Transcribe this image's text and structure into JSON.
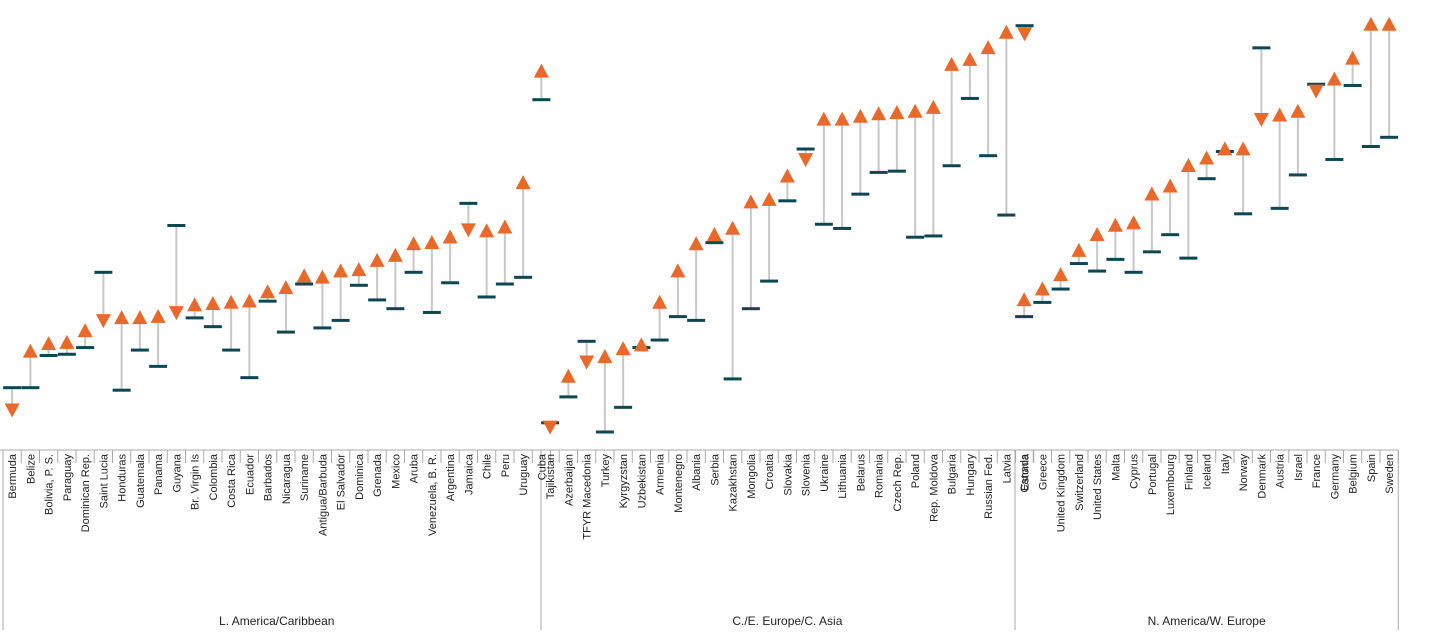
{
  "colors": {
    "start_marker": "#0d4756",
    "end_marker": "#e8692a",
    "connector": "#c8c8c8",
    "axis": "#aaaaaa"
  },
  "chart_data": {
    "type": "dumbbell",
    "title": "",
    "xlabel": "",
    "ylabel": "",
    "y_axis_shown": false,
    "grid": false,
    "legend": "none",
    "ylim": [
      0,
      100
    ],
    "marker_rule": "orange triangle points up when the value rose from the dark dash, down when it fell",
    "groups": [
      {
        "label": "L. America/Caribbean",
        "items": [
          {
            "name": "Bermuda",
            "start": 10.6,
            "end": 5.3
          },
          {
            "name": "Belize",
            "start": 10.6,
            "end": 19.3
          },
          {
            "name": "Bolivia, P. S.",
            "start": 18.3,
            "end": 21.1
          },
          {
            "name": "Paraguay",
            "start": 18.6,
            "end": 21.4
          },
          {
            "name": "Dominican Rep.",
            "start": 20.2,
            "end": 24.2
          },
          {
            "name": "Saint Lucia",
            "start": 38.2,
            "end": 26.7
          },
          {
            "name": "Honduras",
            "start": 10.0,
            "end": 27.3
          },
          {
            "name": "Guatemala",
            "start": 19.6,
            "end": 27.3
          },
          {
            "name": "Panama",
            "start": 15.7,
            "end": 27.6
          },
          {
            "name": "Guyana",
            "start": 49.4,
            "end": 28.6
          },
          {
            "name": "Br. Virgin Is",
            "start": 27.3,
            "end": 30.4
          },
          {
            "name": "Colombia",
            "start": 25.2,
            "end": 30.7
          },
          {
            "name": "Costa Rica",
            "start": 19.6,
            "end": 31.0
          },
          {
            "name": "Ecuador",
            "start": 13.0,
            "end": 31.3
          },
          {
            "name": "Barbados",
            "start": 31.3,
            "end": 33.5
          },
          {
            "name": "Nicaragua",
            "start": 23.9,
            "end": 34.5
          },
          {
            "name": "Suriname",
            "start": 35.4,
            "end": 37.3
          },
          {
            "name": "Antigua/Barbuda",
            "start": 24.9,
            "end": 37.0
          },
          {
            "name": "El Salvador",
            "start": 26.7,
            "end": 38.5
          },
          {
            "name": "Dominica",
            "start": 35.1,
            "end": 38.8
          },
          {
            "name": "Grenada",
            "start": 31.6,
            "end": 41.0
          },
          {
            "name": "Mexico",
            "start": 29.5,
            "end": 42.2
          },
          {
            "name": "Aruba",
            "start": 38.2,
            "end": 45.0
          },
          {
            "name": "Venezuela, B. R.",
            "start": 28.6,
            "end": 45.3
          },
          {
            "name": "Argentina",
            "start": 35.7,
            "end": 46.6
          },
          {
            "name": "Jamaica",
            "start": 54.7,
            "end": 48.4
          },
          {
            "name": "Chile",
            "start": 32.3,
            "end": 48.1
          },
          {
            "name": "Peru",
            "start": 35.4,
            "end": 49.0
          },
          {
            "name": "Uruguay",
            "start": 37.0,
            "end": 59.6
          },
          {
            "name": "Cuba",
            "start": 79.5,
            "end": 86.3
          }
        ]
      },
      {
        "label": "C./E. Europe/C. Asia",
        "items": [
          {
            "name": "Tajikistan",
            "start": 2.2,
            "end": 1.2
          },
          {
            "name": "Azerbaijan",
            "start": 8.4,
            "end": 13.3
          },
          {
            "name": "TFYR Macedonia",
            "start": 21.7,
            "end": 16.8
          },
          {
            "name": "Turkey",
            "start": 0.0,
            "end": 18.0
          },
          {
            "name": "Kyrgyzstan",
            "start": 5.9,
            "end": 19.9
          },
          {
            "name": "Uzbekistan",
            "start": 20.2,
            "end": 20.8
          },
          {
            "name": "Armenia",
            "start": 22.0,
            "end": 31.0
          },
          {
            "name": "Montenegro",
            "start": 27.6,
            "end": 38.5
          },
          {
            "name": "Albania",
            "start": 26.7,
            "end": 45.0
          },
          {
            "name": "Serbia",
            "start": 45.3,
            "end": 47.2
          },
          {
            "name": "Kazakhstan",
            "start": 12.7,
            "end": 48.7
          },
          {
            "name": "Mongolia",
            "start": 29.5,
            "end": 55.0
          },
          {
            "name": "Croatia",
            "start": 36.1,
            "end": 55.6
          },
          {
            "name": "Slovakia",
            "start": 55.3,
            "end": 61.2
          },
          {
            "name": "Slovenia",
            "start": 67.7,
            "end": 65.2
          },
          {
            "name": "Ukraine",
            "start": 49.7,
            "end": 74.8
          },
          {
            "name": "Lithuania",
            "start": 48.7,
            "end": 74.8
          },
          {
            "name": "Belarus",
            "start": 56.9,
            "end": 75.5
          },
          {
            "name": "Romania",
            "start": 62.1,
            "end": 76.1
          },
          {
            "name": "Czech Rep.",
            "start": 62.4,
            "end": 76.4
          },
          {
            "name": "Poland",
            "start": 46.6,
            "end": 76.7
          },
          {
            "name": "Rep. Moldova",
            "start": 46.9,
            "end": 77.6
          },
          {
            "name": "Bulgaria",
            "start": 63.7,
            "end": 87.9
          },
          {
            "name": "Hungary",
            "start": 79.8,
            "end": 89.1
          },
          {
            "name": "Russian Fed.",
            "start": 66.1,
            "end": 91.9
          },
          {
            "name": "Latvia",
            "start": 51.9,
            "end": 95.6
          },
          {
            "name": "Estonia",
            "start": 97.2,
            "end": 95.3
          }
        ]
      },
      {
        "label": "N. America/W. Europe",
        "items": [
          {
            "name": "Canada",
            "start": 27.6,
            "end": 31.6
          },
          {
            "name": "Greece",
            "start": 31.0,
            "end": 34.2
          },
          {
            "name": "United Kingdom",
            "start": 34.2,
            "end": 37.6
          },
          {
            "name": "Switzerland",
            "start": 40.3,
            "end": 43.4
          },
          {
            "name": "United States",
            "start": 38.5,
            "end": 47.2
          },
          {
            "name": "Malta",
            "start": 41.3,
            "end": 49.4
          },
          {
            "name": "Cyprus",
            "start": 38.2,
            "end": 50.0
          },
          {
            "name": "Portugal",
            "start": 43.1,
            "end": 56.9
          },
          {
            "name": "Luxembourg",
            "start": 47.2,
            "end": 58.8
          },
          {
            "name": "Finland",
            "start": 41.6,
            "end": 63.7
          },
          {
            "name": "Iceland",
            "start": 60.6,
            "end": 65.5
          },
          {
            "name": "Italy",
            "start": 67.1,
            "end": 67.7
          },
          {
            "name": "Norway",
            "start": 52.2,
            "end": 67.7
          },
          {
            "name": "Denmark",
            "start": 91.9,
            "end": 74.8
          },
          {
            "name": "Austria",
            "start": 53.5,
            "end": 75.8
          },
          {
            "name": "Israel",
            "start": 61.5,
            "end": 76.7
          },
          {
            "name": "France",
            "start": 83.2,
            "end": 81.6
          },
          {
            "name": "Germany",
            "start": 65.2,
            "end": 84.4
          },
          {
            "name": "Belgium",
            "start": 82.9,
            "end": 89.4
          },
          {
            "name": "Spain",
            "start": 68.3,
            "end": 97.5
          },
          {
            "name": "Sweden",
            "start": 70.5,
            "end": 97.5
          }
        ]
      }
    ]
  }
}
